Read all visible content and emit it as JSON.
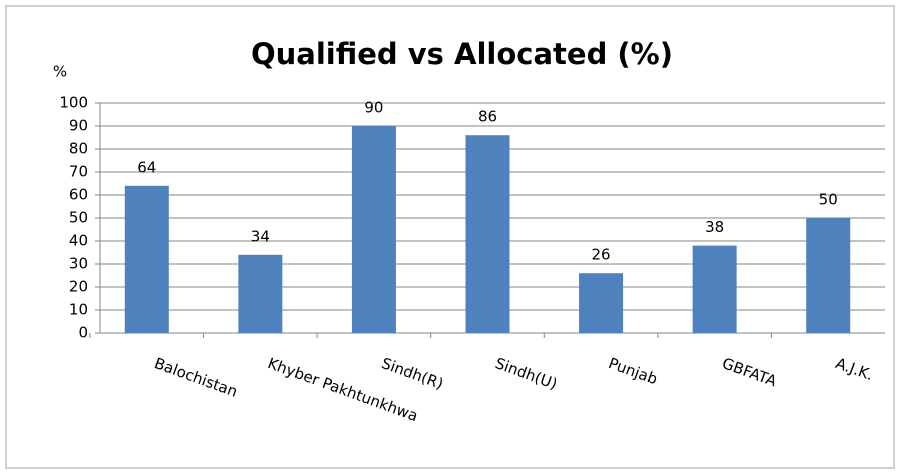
{
  "chart_data": {
    "type": "bar",
    "title": "Qualified vs Allocated (%)",
    "y_label": "%",
    "categories": [
      "Balochistan",
      "Khyber Pakhtunkhwa",
      "Sindh(R)",
      "Sindh(U)",
      "Punjab",
      "GBFATA",
      "A.J.K."
    ],
    "values": [
      64,
      34,
      90,
      86,
      26,
      38,
      50
    ],
    "color": "#4f81bd",
    "ylim": [
      0,
      100
    ],
    "yticks": [
      0,
      10,
      20,
      30,
      40,
      50,
      60,
      70,
      80,
      90,
      100
    ],
    "grid": true
  }
}
